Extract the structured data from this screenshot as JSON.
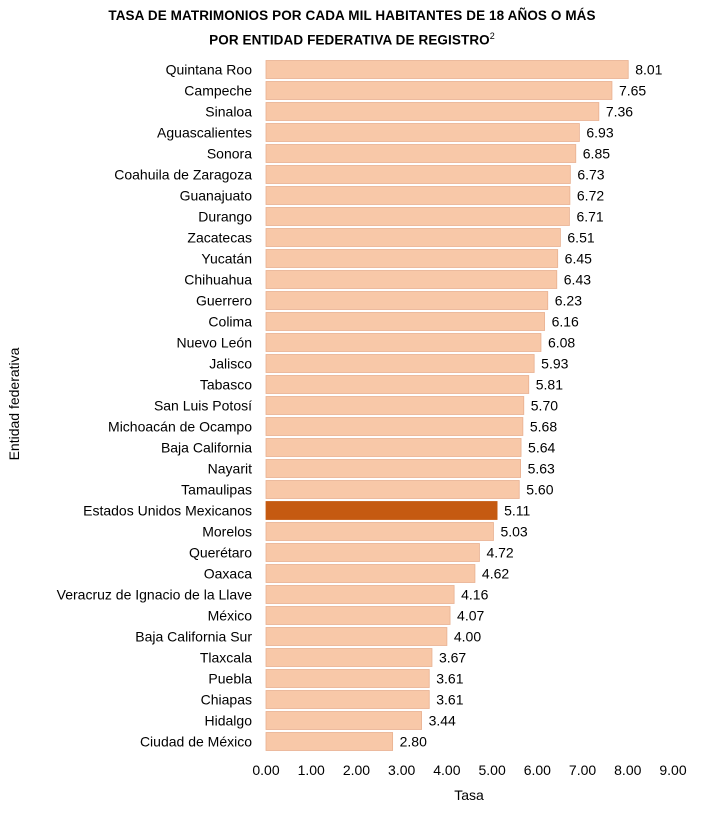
{
  "chart_data": {
    "type": "bar",
    "orientation": "horizontal",
    "title_line1": "Tasa de matrimonios por cada mil habitantes de 18 años o más",
    "title_line2": "por entidad federativa de registro",
    "title_footnote": "2",
    "xlabel": "Tasa",
    "ylabel": "Entidad federativa",
    "xlim": [
      0,
      9
    ],
    "xticks": [
      "0.00",
      "1.00",
      "2.00",
      "3.00",
      "4.00",
      "5.00",
      "6.00",
      "7.00",
      "8.00",
      "9.00"
    ],
    "grid": false,
    "categories": [
      "Quintana Roo",
      "Campeche",
      "Sinaloa",
      "Aguascalientes",
      "Sonora",
      "Coahuila de Zaragoza",
      "Guanajuato",
      "Durango",
      "Zacatecas",
      "Yucatán",
      "Chihuahua",
      "Guerrero",
      "Colima",
      "Nuevo León",
      "Jalisco",
      "Tabasco",
      "San Luis Potosí",
      "Michoacán de Ocampo",
      "Baja California",
      "Nayarit",
      "Tamaulipas",
      "Estados Unidos Mexicanos",
      "Morelos",
      "Querétaro",
      "Oaxaca",
      "Veracruz de Ignacio de la Llave",
      "México",
      "Baja California Sur",
      "Tlaxcala",
      "Puebla",
      "Chiapas",
      "Hidalgo",
      "Ciudad de México"
    ],
    "values": [
      8.01,
      7.65,
      7.36,
      6.93,
      6.85,
      6.73,
      6.72,
      6.71,
      6.51,
      6.45,
      6.43,
      6.23,
      6.16,
      6.08,
      5.93,
      5.81,
      5.7,
      5.68,
      5.64,
      5.63,
      5.6,
      5.11,
      5.03,
      4.72,
      4.62,
      4.16,
      4.07,
      4.0,
      3.67,
      3.61,
      3.61,
      3.44,
      2.8
    ],
    "value_labels": [
      "8.01",
      "7.65",
      "7.36",
      "6.93",
      "6.85",
      "6.73",
      "6.72",
      "6.71",
      "6.51",
      "6.45",
      "6.43",
      "6.23",
      "6.16",
      "6.08",
      "5.93",
      "5.81",
      "5.70",
      "5.68",
      "5.64",
      "5.63",
      "5.60",
      "5.11",
      "5.03",
      "4.72",
      "4.62",
      "4.16",
      "4.07",
      "4.00",
      "3.67",
      "3.61",
      "3.61",
      "3.44",
      "2.80"
    ],
    "highlight": "Estados Unidos Mexicanos",
    "colors": {
      "bar": "#f8c8a8",
      "bar_border": "#e8b090",
      "highlight": "#c55a11"
    }
  }
}
